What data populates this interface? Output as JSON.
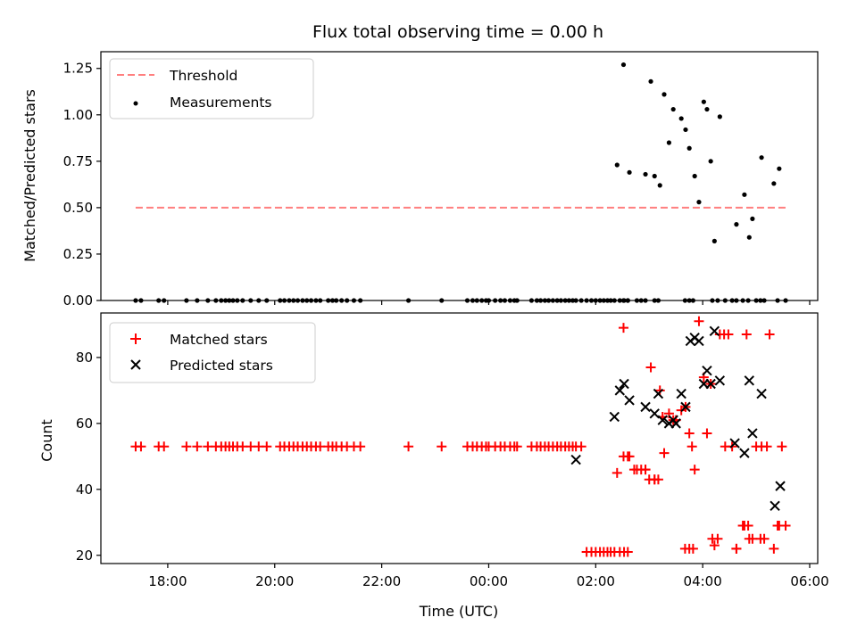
{
  "chart_data": {
    "type": "scatter",
    "title": "Flux total observing time = 0.00 h",
    "xlabel": "Time (UTC)",
    "xlim": [
      16.75,
      30.15
    ],
    "xticks": [
      18,
      20,
      22,
      24,
      26,
      28,
      30
    ],
    "xtick_labels": [
      "18:00",
      "20:00",
      "22:00",
      "00:00",
      "02:00",
      "04:00",
      "06:00"
    ],
    "panels": [
      {
        "ylabel": "Matched/Predicted stars",
        "ylim": [
          0,
          1.34
        ],
        "yticks": [
          0,
          0.25,
          0.5,
          0.75,
          1.0,
          1.25
        ],
        "ytick_labels": [
          "0.00",
          "0.25",
          "0.50",
          "0.75",
          "1.00",
          "1.25"
        ],
        "legend_position": "top-left",
        "series": [
          {
            "name": "Threshold",
            "kind": "line",
            "style": "dashed",
            "color": "#ff7f7f",
            "x": [
              17.4,
              29.55
            ],
            "y": [
              0.5,
              0.5
            ]
          },
          {
            "name": "Measurements",
            "kind": "scatter",
            "marker": "dot",
            "color": "#000000",
            "x": [
              17.4,
              17.5,
              17.83,
              17.93,
              18.35,
              18.55,
              18.75,
              18.9,
              19.0,
              19.08,
              19.15,
              19.22,
              19.3,
              19.4,
              19.55,
              19.7,
              19.85,
              20.1,
              20.18,
              20.27,
              20.35,
              20.43,
              20.52,
              20.6,
              20.68,
              20.77,
              20.85,
              21.0,
              21.08,
              21.15,
              21.25,
              21.35,
              21.48,
              21.6,
              22.5,
              23.12,
              23.6,
              23.7,
              23.78,
              23.87,
              23.95,
              24.0,
              24.12,
              24.22,
              24.3,
              24.4,
              24.48,
              24.53,
              24.8,
              24.9,
              24.97,
              25.05,
              25.12,
              25.2,
              25.28,
              25.35,
              25.43,
              25.5,
              25.57,
              25.63,
              25.73,
              25.83,
              25.92,
              26.0,
              26.08,
              26.15,
              26.22,
              26.28,
              26.35,
              26.45,
              26.53,
              26.6,
              26.77,
              26.85,
              26.93,
              26.52,
              26.6,
              27.1,
              27.17,
              27.67,
              27.75,
              27.82,
              28.18,
              28.28,
              28.42,
              28.55,
              28.63,
              28.75,
              28.85,
              29.0,
              29.08,
              29.15,
              29.4,
              29.55,
              26.4,
              26.52,
              26.63,
              26.93,
              27.03,
              27.1,
              27.2,
              27.28,
              27.37,
              27.45,
              27.6,
              27.68,
              27.75,
              27.85,
              27.93,
              28.02,
              28.08,
              28.15,
              28.22,
              28.32,
              28.63,
              28.78,
              28.87,
              28.93,
              29.1,
              29.33,
              29.43
            ],
            "y": [
              0,
              0,
              0,
              0,
              0,
              0,
              0,
              0,
              0,
              0,
              0,
              0,
              0,
              0,
              0,
              0,
              0,
              0,
              0,
              0,
              0,
              0,
              0,
              0,
              0,
              0,
              0,
              0,
              0,
              0,
              0,
              0,
              0,
              0,
              0,
              0,
              0,
              0,
              0,
              0,
              0,
              0,
              0,
              0,
              0,
              0,
              0,
              0,
              0,
              0,
              0,
              0,
              0,
              0,
              0,
              0,
              0,
              0,
              0,
              0,
              0,
              0,
              0,
              0,
              0,
              0,
              0,
              0,
              0,
              0,
              0,
              0,
              0,
              0,
              0,
              0,
              0,
              0,
              0,
              0,
              0,
              0,
              0,
              0,
              0,
              0,
              0,
              0,
              0,
              0,
              0,
              0,
              0,
              0,
              0.73,
              1.27,
              0.69,
              0.68,
              1.18,
              0.67,
              0.62,
              1.11,
              0.85,
              1.03,
              0.98,
              0.92,
              0.82,
              0.67,
              0.53,
              1.07,
              1.03,
              0.75,
              0.32,
              0.99,
              0.41,
              0.57,
              0.34,
              0.44,
              0.77,
              0.63,
              0.71
            ]
          }
        ]
      },
      {
        "ylabel": "Count",
        "ylim": [
          17.5,
          93.5
        ],
        "yticks": [
          20,
          40,
          60,
          80
        ],
        "ytick_labels": [
          "20",
          "40",
          "60",
          "80"
        ],
        "legend_position": "top-left",
        "series": [
          {
            "name": "Matched stars",
            "kind": "scatter",
            "marker": "plus",
            "color": "#ff0000",
            "x": [
              17.4,
              17.5,
              17.83,
              17.93,
              18.35,
              18.55,
              18.75,
              18.9,
              19.0,
              19.08,
              19.15,
              19.22,
              19.3,
              19.4,
              19.55,
              19.7,
              19.85,
              20.1,
              20.18,
              20.27,
              20.35,
              20.43,
              20.52,
              20.6,
              20.68,
              20.77,
              20.85,
              21.0,
              21.08,
              21.15,
              21.25,
              21.35,
              21.48,
              21.6,
              22.5,
              23.12,
              23.6,
              23.7,
              23.78,
              23.87,
              23.95,
              24.0,
              24.12,
              24.22,
              24.3,
              24.4,
              24.48,
              24.53,
              24.8,
              24.9,
              24.97,
              25.05,
              25.12,
              25.2,
              25.28,
              25.35,
              25.43,
              25.5,
              25.57,
              25.63,
              25.73,
              25.83,
              25.92,
              26.0,
              26.08,
              26.15,
              26.22,
              26.28,
              26.35,
              26.45,
              26.53,
              26.6,
              26.77,
              26.85,
              26.93,
              26.52,
              26.6,
              27.1,
              27.17,
              27.67,
              27.75,
              27.82,
              28.18,
              28.28,
              28.42,
              28.55,
              28.63,
              28.75,
              28.85,
              29.0,
              29.08,
              29.15,
              29.4,
              29.55,
              26.4,
              26.52,
              26.63,
              26.93,
              27.03,
              27.1,
              27.2,
              27.28,
              27.37,
              27.45,
              27.6,
              27.68,
              27.75,
              27.85,
              27.93,
              28.02,
              28.08,
              28.15,
              28.22,
              28.32,
              28.63,
              28.78,
              28.87,
              28.93,
              29.1,
              29.33,
              29.43,
              26.72,
              27.0,
              27.25,
              27.5,
              27.8,
              28.4,
              28.48,
              28.82,
              29.2,
              29.25,
              29.48
            ],
            "y": [
              53,
              53,
              53,
              53,
              53,
              53,
              53,
              53,
              53,
              53,
              53,
              53,
              53,
              53,
              53,
              53,
              53,
              53,
              53,
              53,
              53,
              53,
              53,
              53,
              53,
              53,
              53,
              53,
              53,
              53,
              53,
              53,
              53,
              53,
              53,
              53,
              53,
              53,
              53,
              53,
              53,
              53,
              53,
              53,
              53,
              53,
              53,
              53,
              53,
              53,
              53,
              53,
              53,
              53,
              53,
              53,
              53,
              53,
              53,
              53,
              53,
              21,
              21,
              21,
              21,
              21,
              21,
              21,
              21,
              21,
              21,
              21,
              46,
              46,
              46,
              50,
              50,
              43,
              43,
              22,
              22,
              22,
              25,
              25,
              53,
              53,
              22,
              29,
              29,
              53,
              25,
              25,
              29,
              29,
              45,
              89,
              50,
              46,
              77,
              43,
              70,
              51,
              63,
              61,
              64,
              65,
              57,
              46,
              91,
              74,
              57,
              72,
              23,
              87,
              22,
              29,
              25,
              25,
              53,
              22,
              29,
              46,
              43,
              62,
              61,
              53,
              87,
              87,
              87,
              53,
              87,
              53
            ],
            "note": "values estimated from the plot"
          },
          {
            "name": "Predicted stars",
            "kind": "scatter",
            "marker": "x",
            "color": "#000000",
            "x": [
              25.63,
              26.35,
              26.45,
              26.53,
              26.63,
              26.93,
              27.1,
              27.17,
              27.25,
              27.37,
              27.45,
              27.5,
              27.6,
              27.68,
              27.77,
              27.85,
              27.93,
              28.02,
              28.08,
              28.15,
              28.22,
              28.32,
              28.6,
              28.78,
              28.87,
              28.93,
              29.1,
              29.35,
              29.45
            ],
            "y": [
              49,
              62,
              70,
              72,
              67,
              65,
              63,
              69,
              61,
              60,
              61,
              60,
              69,
              65,
              85,
              86,
              85,
              72,
              76,
              72,
              88,
              73,
              54,
              51,
              73,
              57,
              69,
              35,
              41
            ]
          }
        ]
      }
    ]
  },
  "colors": {
    "threshold": "#ff7f7f",
    "measurements": "#000000",
    "matched": "#ff0000",
    "predicted": "#000000"
  }
}
